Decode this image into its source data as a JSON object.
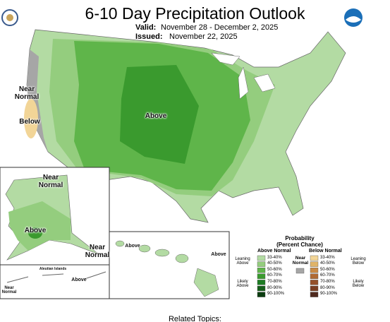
{
  "header": {
    "title": "6-10 Day Precipitation Outlook",
    "valid_label": "Valid:",
    "valid": "November 28 - December 2, 2025",
    "issued_label": "Issued:",
    "issued": "November 22, 2025"
  },
  "map_labels": [
    {
      "text": "Near Normal"
    },
    {
      "text": "Below"
    },
    {
      "text": "Above"
    },
    {
      "text": "Near Normal"
    },
    {
      "text": "Above"
    },
    {
      "text": "Near Normal"
    },
    {
      "text": "Aleutian Islands"
    },
    {
      "text": "Above"
    },
    {
      "text": "Near Normal"
    },
    {
      "text": "Above"
    },
    {
      "text": "Above"
    }
  ],
  "legend": {
    "title": "Probability",
    "subtitle": "(Percent Chance)",
    "above": {
      "title": "Above Normal",
      "ranges": [
        "33-40%",
        "40-50%",
        "50-60%",
        "60-70%",
        "70-80%",
        "80-90%",
        "90-100%"
      ],
      "colors": [
        "#b3dba3",
        "#94cd7e",
        "#5fb54a",
        "#3a9a2e",
        "#1e7d24",
        "#155e1a",
        "#0b3d10"
      ],
      "leaning": "Leaning Above",
      "likely": "Likely Above"
    },
    "near": {
      "title": "Near Normal",
      "color": "#a6a6a6"
    },
    "below": {
      "title": "Below Normal",
      "ranges": [
        "33-40%",
        "40-50%",
        "50-60%",
        "60-70%",
        "70-80%",
        "80-90%",
        "90-100%"
      ],
      "colors": [
        "#f2d597",
        "#e0b468",
        "#c98a45",
        "#b06a33",
        "#95502a",
        "#7a3d22",
        "#4f2a1e"
      ],
      "leaning": "Leaning Below",
      "likely": "Likely Below"
    }
  },
  "footer": {
    "related": "Related Topics:"
  }
}
